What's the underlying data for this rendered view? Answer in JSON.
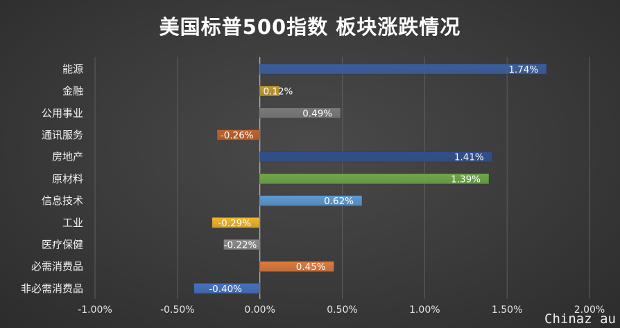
{
  "chart_data": {
    "type": "bar",
    "orientation": "horizontal",
    "title": "美国标普500指数 板块涨跌情况",
    "categories": [
      "能源",
      "金融",
      "公用事业",
      "通讯服务",
      "房地产",
      "原材料",
      "信息技术",
      "工业",
      "医疗保健",
      "必需消费品",
      "非必需消费品"
    ],
    "values": [
      1.74,
      0.12,
      0.49,
      -0.26,
      1.41,
      1.39,
      0.62,
      -0.29,
      -0.22,
      0.45,
      -0.4
    ],
    "value_labels": [
      "1.74%",
      "0.12%",
      "0.49%",
      "-0.26%",
      "1.41%",
      "1.39%",
      "0.62%",
      "-0.29%",
      "-0.22%",
      "0.45%",
      "-0.40%"
    ],
    "bar_colors": [
      "#3a5fa0",
      "#c29a2e",
      "#7a7a7a",
      "#c0622a",
      "#2f4f8f",
      "#6faa46",
      "#5b9bd5",
      "#f2b72a",
      "#8c8c8c",
      "#e27a3a",
      "#4472c4"
    ],
    "xlim": [
      -1.0,
      2.0
    ],
    "xticks": [
      -1.0,
      -0.5,
      0.0,
      0.5,
      1.0,
      1.5,
      2.0
    ],
    "xtick_labels": [
      "-1.00%",
      "-0.50%",
      "0.00%",
      "0.50%",
      "1.00%",
      "1.50%",
      "2.00%"
    ],
    "grid": true,
    "xlabel": "",
    "ylabel": ""
  },
  "watermark": "Chinaz au"
}
